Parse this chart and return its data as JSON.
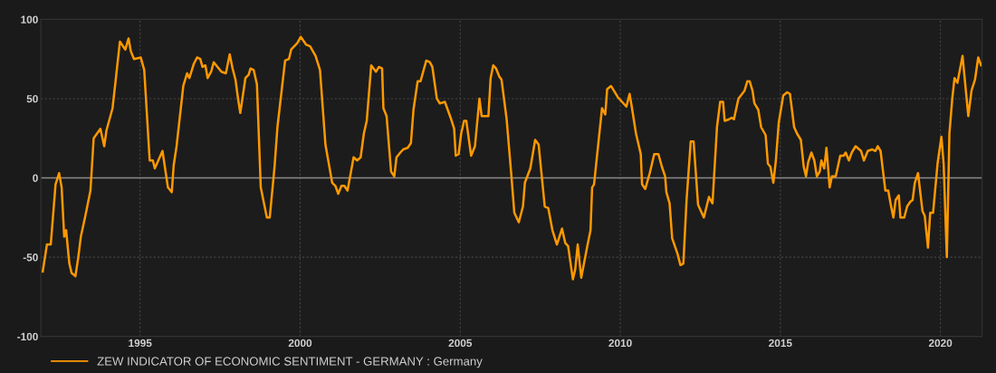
{
  "chart_data": {
    "type": "line",
    "xlim": [
      1991.9,
      2021.3
    ],
    "xticks": [
      1995,
      2000,
      2005,
      2010,
      2015,
      2020
    ],
    "ylim": [
      -100,
      100
    ],
    "yticks": [
      -100,
      -50,
      0,
      50,
      100
    ],
    "grid": true,
    "legend": "bottom left",
    "line_style": "solid",
    "ref_lines": [
      {
        "axis": "y",
        "value": 0,
        "label": null,
        "color": "#8a8a8a"
      }
    ],
    "series": [
      {
        "name": "ZEW INDICATOR OF ECONOMIC SENTIMENT - GERMANY : Germany",
        "color": "#ff9900",
        "x": [
          1991.96,
          1992.09,
          1992.21,
          1992.36,
          1992.47,
          1992.55,
          1992.63,
          1992.69,
          1992.79,
          1992.86,
          1992.98,
          1993.07,
          1993.15,
          1993.29,
          1993.45,
          1993.55,
          1993.76,
          1993.88,
          1993.95,
          1994.14,
          1994.24,
          1994.37,
          1994.54,
          1994.64,
          1994.71,
          1994.81,
          1995.02,
          1995.13,
          1995.3,
          1995.4,
          1995.46,
          1995.7,
          1995.87,
          1995.99,
          1996.05,
          1996.14,
          1996.35,
          1996.47,
          1996.54,
          1996.68,
          1996.78,
          1996.88,
          1996.95,
          1997.04,
          1997.11,
          1997.22,
          1997.3,
          1997.54,
          1997.68,
          1997.8,
          1997.89,
          1997.98,
          1998.06,
          1998.13,
          1998.29,
          1998.39,
          1998.45,
          1998.55,
          1998.65,
          1998.77,
          1998.96,
          1999.05,
          1999.2,
          1999.29,
          1999.53,
          1999.65,
          1999.72,
          1999.91,
          2000.02,
          2000.19,
          2000.31,
          2000.48,
          2000.62,
          2000.79,
          2001.0,
          2001.1,
          2001.19,
          2001.29,
          2001.38,
          2001.48,
          2001.67,
          2001.78,
          2001.89,
          2001.99,
          2002.08,
          2002.22,
          2002.37,
          2002.46,
          2002.56,
          2002.6,
          2002.7,
          2002.84,
          2002.94,
          2003.01,
          2003.13,
          2003.22,
          2003.36,
          2003.46,
          2003.54,
          2003.67,
          2003.76,
          2003.94,
          2004.05,
          2004.13,
          2004.27,
          2004.36,
          2004.52,
          2004.7,
          2004.81,
          2004.86,
          2004.95,
          2005.03,
          2005.12,
          2005.19,
          2005.34,
          2005.46,
          2005.6,
          2005.67,
          2005.88,
          2005.95,
          2006.03,
          2006.12,
          2006.22,
          2006.29,
          2006.45,
          2006.6,
          2006.69,
          2006.83,
          2006.96,
          2007.02,
          2007.19,
          2007.34,
          2007.45,
          2007.64,
          2007.75,
          2007.88,
          2008.02,
          2008.18,
          2008.28,
          2008.37,
          2008.52,
          2008.59,
          2008.67,
          2008.78,
          2008.97,
          2009.07,
          2009.12,
          2009.18,
          2009.31,
          2009.43,
          2009.53,
          2009.59,
          2009.71,
          2009.92,
          2010.1,
          2010.19,
          2010.29,
          2010.35,
          2010.49,
          2010.64,
          2010.68,
          2010.78,
          2010.92,
          2011.06,
          2011.19,
          2011.3,
          2011.4,
          2011.44,
          2011.54,
          2011.62,
          2011.79,
          2011.88,
          2011.97,
          2012.07,
          2012.2,
          2012.29,
          2012.43,
          2012.61,
          2012.77,
          2012.88,
          2013.02,
          2013.12,
          2013.21,
          2013.26,
          2013.4,
          2013.48,
          2013.55,
          2013.69,
          2013.88,
          2013.97,
          2014.04,
          2014.13,
          2014.19,
          2014.31,
          2014.4,
          2014.54,
          2014.61,
          2014.69,
          2014.78,
          2014.86,
          2014.95,
          2015.09,
          2015.21,
          2015.3,
          2015.43,
          2015.52,
          2015.64,
          2015.73,
          2015.8,
          2015.87,
          2015.97,
          2016.06,
          2016.14,
          2016.23,
          2016.28,
          2016.37,
          2016.44,
          2016.54,
          2016.61,
          2016.73,
          2016.87,
          2016.98,
          2017.04,
          2017.14,
          2017.23,
          2017.35,
          2017.52,
          2017.61,
          2017.73,
          2017.87,
          2017.97,
          2018.04,
          2018.13,
          2018.28,
          2018.37,
          2018.44,
          2018.53,
          2018.6,
          2018.7,
          2018.75,
          2018.87,
          2018.96,
          2019.06,
          2019.13,
          2019.2,
          2019.3,
          2019.44,
          2019.51,
          2019.61,
          2019.68,
          2019.77,
          2019.91,
          2020.03,
          2020.1,
          2020.2,
          2020.28,
          2020.37,
          2020.44,
          2020.53,
          2020.69,
          2020.87,
          2020.97,
          2021.08,
          2021.18,
          2021.27
        ],
        "values": [
          -59,
          -42,
          -42,
          -4,
          3,
          -6,
          -37,
          -33,
          -54,
          -60,
          -62,
          -50,
          -37,
          -24,
          -8,
          25,
          31,
          20,
          30,
          44,
          62,
          86,
          81,
          88,
          80,
          75,
          76,
          68,
          11,
          11,
          6,
          17,
          -6,
          -9,
          8,
          20,
          58,
          66,
          63,
          72,
          76,
          75,
          70,
          71,
          63,
          67,
          73,
          67,
          66,
          78,
          69,
          62,
          50,
          41,
          63,
          65,
          69,
          68,
          59,
          -6,
          -25,
          -25,
          7,
          32,
          74,
          75,
          81,
          85,
          89,
          84,
          83,
          77,
          68,
          21,
          -3,
          -5,
          -10,
          -5,
          -5,
          -8,
          13,
          11,
          13,
          28,
          36,
          71,
          67,
          70,
          69,
          44,
          39,
          4,
          1,
          13,
          16,
          18,
          19,
          22,
          43,
          61,
          61,
          74,
          73,
          70,
          50,
          47,
          48,
          38,
          31,
          14,
          15,
          28,
          36,
          36,
          14,
          20,
          50,
          39,
          39,
          63,
          71,
          69,
          64,
          62,
          37,
          1,
          -22,
          -28,
          -18,
          -3,
          6,
          24,
          21,
          -18,
          -19,
          -33,
          -42,
          -32,
          -41,
          -43,
          -64,
          -58,
          -42,
          -63,
          -43,
          -33,
          -6,
          -4,
          21,
          44,
          40,
          56,
          58,
          51,
          47,
          45,
          53,
          46,
          28,
          15,
          -4,
          -7,
          3,
          15,
          15,
          7,
          1,
          -9,
          -16,
          -38,
          -48,
          -55,
          -54,
          -14,
          23,
          23,
          -17,
          -25,
          -12,
          -16,
          32,
          48,
          48,
          36,
          37,
          38,
          37,
          50,
          55,
          61,
          61,
          55,
          47,
          43,
          32,
          27,
          9,
          7,
          -3,
          11,
          35,
          52,
          54,
          53,
          32,
          28,
          24,
          7,
          1,
          10,
          16,
          11,
          1,
          4,
          11,
          6,
          19,
          -6,
          1,
          1,
          14,
          14,
          16,
          11,
          16,
          20,
          17,
          11,
          17,
          18,
          17,
          20,
          17,
          -8,
          -8,
          -16,
          -25,
          -14,
          -11,
          -25,
          -25,
          -18,
          -15,
          -14,
          -3,
          3,
          -21,
          -24,
          -44,
          -22,
          -22,
          9,
          26,
          9,
          -50,
          28,
          50,
          63,
          60,
          77,
          39,
          55,
          62,
          76,
          71
        ]
      }
    ]
  }
}
